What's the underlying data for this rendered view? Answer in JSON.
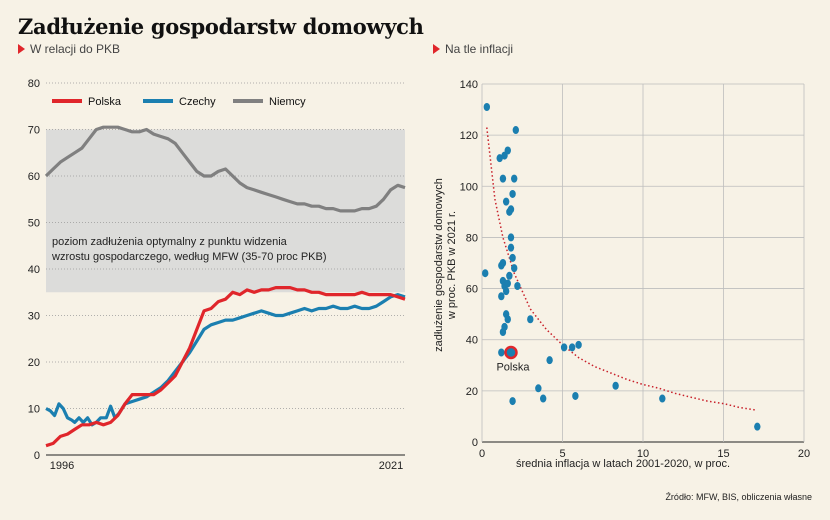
{
  "header": {
    "title": "Zadłużenie gospodarstw domowych",
    "subtitle_left": "W relacji do PKB",
    "subtitle_right": "Na tle inflacji"
  },
  "source": "Źródło: MFW, BIS, obliczenia własne",
  "colors": {
    "poland": "#e0262b",
    "czech": "#1b7fb0",
    "germany": "#808080",
    "band": "#dcdcda",
    "scatter": "#1b7fb0",
    "curve": "#c8202a"
  },
  "chart_data": [
    {
      "type": "line",
      "xlim": [
        1996,
        2021
      ],
      "ylim": [
        0,
        80
      ],
      "x_tick_labels": [
        "1996",
        "2021"
      ],
      "y_ticks": [
        0,
        10,
        20,
        30,
        40,
        50,
        60,
        70,
        80
      ],
      "grid": "horizontal dotted",
      "legend_position": "top-left",
      "band": {
        "range": [
          35,
          70
        ],
        "label_line1": "poziom zadłużenia optymalny z punktu widzenia",
        "label_line2": "wzrostu gospodarczego, według MFW (35-70 proc PKB)"
      },
      "series": [
        {
          "name": "Polska",
          "points": [
            [
              1996,
              2
            ],
            [
              1996.5,
              2.5
            ],
            [
              1997,
              4
            ],
            [
              1997.5,
              4.5
            ],
            [
              1998,
              5.5
            ],
            [
              1998.5,
              6.5
            ],
            [
              1999,
              6.5
            ],
            [
              1999.5,
              7
            ],
            [
              2000,
              6.5
            ],
            [
              2000.5,
              7
            ],
            [
              2001,
              8.5
            ],
            [
              2001.5,
              11
            ],
            [
              2002,
              13
            ],
            [
              2002.5,
              13
            ],
            [
              2003,
              13
            ],
            [
              2003.5,
              13
            ],
            [
              2004,
              14
            ],
            [
              2004.5,
              15.5
            ],
            [
              2005,
              17
            ],
            [
              2005.5,
              20
            ],
            [
              2006,
              23
            ],
            [
              2006.5,
              27
            ],
            [
              2007,
              31
            ],
            [
              2007.5,
              31.5
            ],
            [
              2008,
              33
            ],
            [
              2008.5,
              33.5
            ],
            [
              2009,
              35
            ],
            [
              2009.5,
              34.5
            ],
            [
              2010,
              35.5
            ],
            [
              2010.5,
              35
            ],
            [
              2011,
              35.5
            ],
            [
              2011.5,
              35.5
            ],
            [
              2012,
              36
            ],
            [
              2012.5,
              36
            ],
            [
              2013,
              36
            ],
            [
              2013.5,
              35.5
            ],
            [
              2014,
              35.5
            ],
            [
              2014.5,
              35
            ],
            [
              2015,
              35
            ],
            [
              2015.5,
              34.5
            ],
            [
              2016,
              34.5
            ],
            [
              2016.5,
              34.5
            ],
            [
              2017,
              34.5
            ],
            [
              2017.5,
              34.5
            ],
            [
              2018,
              35
            ],
            [
              2018.5,
              34.5
            ],
            [
              2019,
              34.5
            ],
            [
              2019.5,
              34.5
            ],
            [
              2020,
              34.5
            ],
            [
              2020.5,
              34
            ],
            [
              2021,
              33.5
            ]
          ]
        },
        {
          "name": "Czechy",
          "points": [
            [
              1996,
              10
            ],
            [
              1996.3,
              9.5
            ],
            [
              1996.6,
              8.5
            ],
            [
              1996.9,
              11
            ],
            [
              1997.2,
              10
            ],
            [
              1997.5,
              8
            ],
            [
              1997.8,
              7.5
            ],
            [
              1998,
              7
            ],
            [
              1998.3,
              8
            ],
            [
              1998.6,
              7
            ],
            [
              1998.9,
              8
            ],
            [
              1999.2,
              6.5
            ],
            [
              1999.5,
              7
            ],
            [
              1999.8,
              8
            ],
            [
              2000.2,
              8
            ],
            [
              2000.5,
              10.5
            ],
            [
              2000.8,
              8
            ],
            [
              2001.1,
              9
            ],
            [
              2001.5,
              11
            ],
            [
              2002,
              11.5
            ],
            [
              2002.5,
              12
            ],
            [
              2003,
              12.5
            ],
            [
              2003.5,
              13.5
            ],
            [
              2004,
              14.5
            ],
            [
              2004.5,
              16
            ],
            [
              2005,
              18
            ],
            [
              2005.5,
              20
            ],
            [
              2006,
              22
            ],
            [
              2006.5,
              24.5
            ],
            [
              2007,
              27
            ],
            [
              2007.5,
              28
            ],
            [
              2008,
              28.5
            ],
            [
              2008.5,
              29
            ],
            [
              2009,
              29
            ],
            [
              2009.5,
              29.5
            ],
            [
              2010,
              30
            ],
            [
              2010.5,
              30.5
            ],
            [
              2011,
              31
            ],
            [
              2011.5,
              30.5
            ],
            [
              2012,
              30
            ],
            [
              2012.5,
              30
            ],
            [
              2013,
              30.5
            ],
            [
              2013.5,
              31
            ],
            [
              2014,
              31.5
            ],
            [
              2014.5,
              31
            ],
            [
              2015,
              31.5
            ],
            [
              2015.5,
              31.5
            ],
            [
              2016,
              32
            ],
            [
              2016.5,
              31.5
            ],
            [
              2017,
              31.5
            ],
            [
              2017.5,
              32
            ],
            [
              2018,
              31.5
            ],
            [
              2018.5,
              31.5
            ],
            [
              2019,
              32
            ],
            [
              2019.5,
              33
            ],
            [
              2020,
              34
            ],
            [
              2020.5,
              34.5
            ],
            [
              2021,
              34
            ]
          ]
        },
        {
          "name": "Niemcy",
          "points": [
            [
              1996,
              60
            ],
            [
              1996.5,
              61.5
            ],
            [
              1997,
              63
            ],
            [
              1997.5,
              64
            ],
            [
              1998,
              65
            ],
            [
              1998.5,
              66
            ],
            [
              1999,
              68
            ],
            [
              1999.5,
              70
            ],
            [
              2000,
              70.5
            ],
            [
              2000.5,
              70.5
            ],
            [
              2001,
              70.5
            ],
            [
              2001.5,
              70
            ],
            [
              2002,
              69.5
            ],
            [
              2002.5,
              69.5
            ],
            [
              2003,
              70
            ],
            [
              2003.5,
              69
            ],
            [
              2004,
              68.5
            ],
            [
              2004.5,
              68
            ],
            [
              2005,
              67
            ],
            [
              2005.5,
              65
            ],
            [
              2006,
              63
            ],
            [
              2006.5,
              61
            ],
            [
              2007,
              60
            ],
            [
              2007.5,
              60
            ],
            [
              2008,
              61
            ],
            [
              2008.5,
              61.5
            ],
            [
              2009,
              60
            ],
            [
              2009.5,
              58.5
            ],
            [
              2010,
              57.5
            ],
            [
              2010.5,
              57
            ],
            [
              2011,
              56.5
            ],
            [
              2011.5,
              56
            ],
            [
              2012,
              55.5
            ],
            [
              2012.5,
              55
            ],
            [
              2013,
              54.5
            ],
            [
              2013.5,
              54
            ],
            [
              2014,
              54
            ],
            [
              2014.5,
              53.5
            ],
            [
              2015,
              53.5
            ],
            [
              2015.5,
              53
            ],
            [
              2016,
              53
            ],
            [
              2016.5,
              52.5
            ],
            [
              2017,
              52.5
            ],
            [
              2017.5,
              52.5
            ],
            [
              2018,
              53
            ],
            [
              2018.5,
              53
            ],
            [
              2019,
              53.5
            ],
            [
              2019.5,
              55
            ],
            [
              2020,
              57
            ],
            [
              2020.5,
              58
            ],
            [
              2021,
              57.5
            ]
          ]
        }
      ]
    },
    {
      "type": "scatter",
      "xlabel": "średnia inflacja w latach 2001-2020, w proc.",
      "ylabel_line1": "zadłużenie gospodarstw domowych",
      "ylabel_line2": "w proc. PKB w 2021 r.",
      "xlim": [
        0,
        20
      ],
      "ylim": [
        0,
        140
      ],
      "x_ticks": [
        0,
        5,
        10,
        15,
        20
      ],
      "y_ticks": [
        0,
        20,
        40,
        60,
        80,
        100,
        120,
        140
      ],
      "grid": "both, solid light",
      "highlight": {
        "label": "Polska",
        "x": 1.8,
        "y": 35
      },
      "trend_curve": [
        [
          0.3,
          123
        ],
        [
          0.8,
          95
        ],
        [
          1.3,
          80
        ],
        [
          2,
          66
        ],
        [
          3,
          52
        ],
        [
          4,
          44
        ],
        [
          5,
          38
        ],
        [
          6,
          33
        ],
        [
          7,
          29.5
        ],
        [
          8,
          27
        ],
        [
          9,
          24.5
        ],
        [
          10,
          22.5
        ],
        [
          11,
          21
        ],
        [
          12,
          19
        ],
        [
          13,
          17.5
        ],
        [
          14,
          16
        ],
        [
          15,
          15
        ],
        [
          16,
          13.5
        ],
        [
          17,
          12.5
        ]
      ],
      "points": [
        [
          0.3,
          131
        ],
        [
          0.2,
          66
        ],
        [
          1.1,
          111
        ],
        [
          1.3,
          103
        ],
        [
          1.4,
          112
        ],
        [
          1.6,
          114
        ],
        [
          1.5,
          94
        ],
        [
          1.7,
          90
        ],
        [
          1.8,
          91
        ],
        [
          1.9,
          97
        ],
        [
          2.0,
          103
        ],
        [
          2.1,
          122
        ],
        [
          1.2,
          57
        ],
        [
          1.3,
          63
        ],
        [
          1.4,
          61
        ],
        [
          1.5,
          59
        ],
        [
          1.6,
          62
        ],
        [
          1.7,
          65
        ],
        [
          1.8,
          80
        ],
        [
          1.8,
          76
        ],
        [
          1.9,
          72
        ],
        [
          2.0,
          68
        ],
        [
          2.2,
          61
        ],
        [
          1.2,
          69
        ],
        [
          1.3,
          70
        ],
        [
          1.5,
          50
        ],
        [
          1.6,
          48
        ],
        [
          1.3,
          43
        ],
        [
          1.4,
          45
        ],
        [
          1.2,
          35
        ],
        [
          1.9,
          16
        ],
        [
          3.0,
          48
        ],
        [
          3.5,
          21
        ],
        [
          3.8,
          17
        ],
        [
          4.2,
          32
        ],
        [
          5.1,
          37
        ],
        [
          5.6,
          37
        ],
        [
          5.8,
          18
        ],
        [
          6.0,
          38
        ],
        [
          8.3,
          22
        ],
        [
          11.2,
          17
        ],
        [
          17.1,
          6
        ]
      ]
    }
  ]
}
